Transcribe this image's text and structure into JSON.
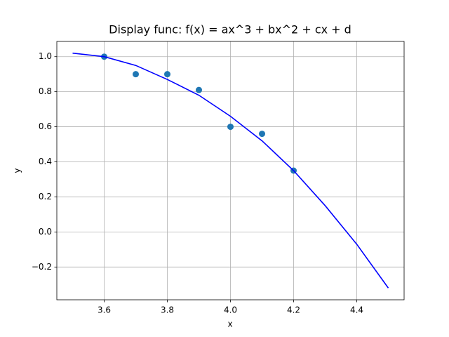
{
  "chart_data": {
    "type": "line",
    "title": "Display func: f(x) = ax^3 + bx^2 + cx + d",
    "xlabel": "x",
    "ylabel": "y",
    "grid": true,
    "xlim": [
      3.45,
      4.55
    ],
    "ylim": [
      -0.387,
      1.087
    ],
    "xticks": [
      3.6,
      3.8,
      {
        "value": 4,
        "label": "4.0"
      },
      4.2,
      4.4
    ],
    "yticks": [
      {
        "value": -0.2,
        "label": "−0.2"
      },
      {
        "value": 0,
        "label": "0.0"
      },
      0.2,
      0.4,
      0.6,
      0.8,
      {
        "value": 1,
        "label": "1.0"
      }
    ],
    "series": [
      {
        "type": "scatter",
        "color": "#1f77b4",
        "x": [
          3.6,
          3.7,
          3.8,
          3.9,
          4.0,
          4.1,
          4.2
        ],
        "values": [
          1.0,
          0.9,
          0.9,
          0.81,
          0.6,
          0.56,
          0.35
        ]
      },
      {
        "type": "line",
        "color": "#0000ff",
        "x": [
          3.5,
          3.6,
          3.7,
          3.8,
          3.9,
          4.0,
          4.1,
          4.2,
          4.3,
          4.4,
          4.5
        ],
        "values": [
          1.02,
          1.0,
          0.95,
          0.87,
          0.78,
          0.66,
          0.52,
          0.35,
          0.15,
          -0.07,
          -0.32
        ]
      }
    ]
  }
}
